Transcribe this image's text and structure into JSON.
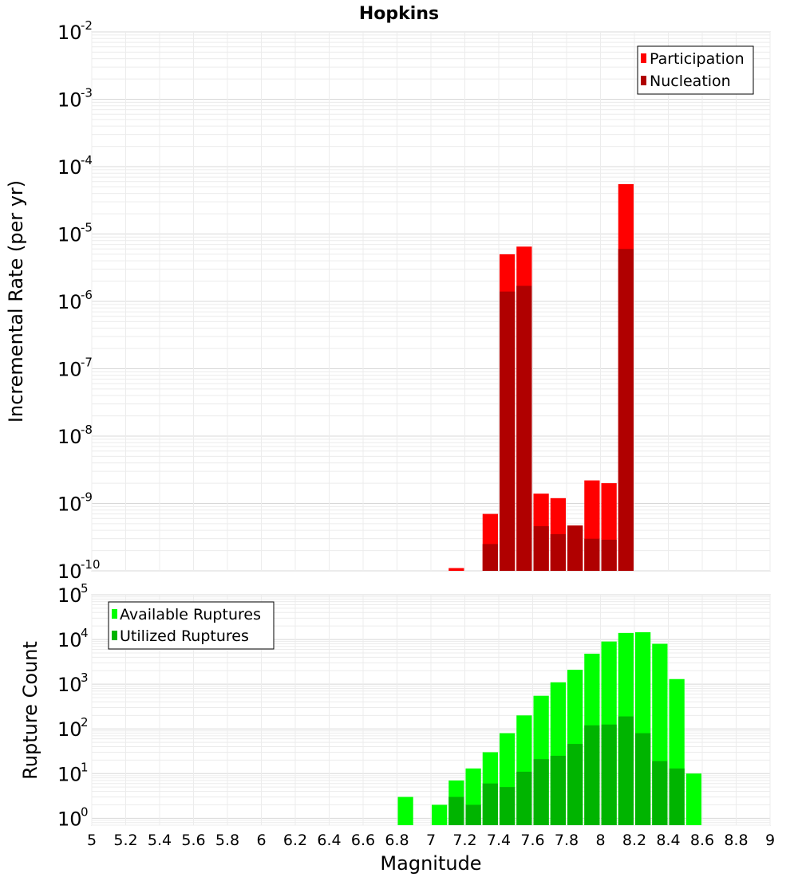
{
  "chart_data": [
    {
      "type": "bar",
      "title": "Hopkins",
      "xlabel": "",
      "ylabel": "Incremental Rate (per yr)",
      "xlim": [
        5,
        9
      ],
      "ylim": [
        1e-10,
        0.01
      ],
      "yscale": "log",
      "grid": true,
      "bin_width": 0.1,
      "legend_position": "top-right",
      "y_ticks": [
        {
          "base": "10",
          "exp": "-10"
        },
        {
          "base": "10",
          "exp": "-9"
        },
        {
          "base": "10",
          "exp": "-8"
        },
        {
          "base": "10",
          "exp": "-7"
        },
        {
          "base": "10",
          "exp": "-6"
        },
        {
          "base": "10",
          "exp": "-5"
        },
        {
          "base": "10",
          "exp": "-4"
        },
        {
          "base": "10",
          "exp": "-3"
        },
        {
          "base": "10",
          "exp": "-2"
        }
      ],
      "series": [
        {
          "name": "Participation",
          "color": "#ff0000",
          "x": [
            7.15,
            7.35,
            7.45,
            7.55,
            7.65,
            7.75,
            7.85,
            7.95,
            8.05,
            8.15
          ],
          "values": [
            1.1e-10,
            7e-10,
            5e-06,
            6.5e-06,
            1.4e-09,
            1.2e-09,
            4.7e-10,
            2.2e-09,
            2e-09,
            5.5e-05
          ]
        },
        {
          "name": "Nucleation",
          "color": "#b00000",
          "x": [
            7.35,
            7.45,
            7.55,
            7.65,
            7.75,
            7.85,
            7.95,
            8.05,
            8.15
          ],
          "values": [
            2.5e-10,
            1.4e-06,
            1.7e-06,
            4.6e-10,
            3.5e-10,
            4.7e-10,
            3e-10,
            2.9e-10,
            6e-06
          ]
        }
      ]
    },
    {
      "type": "bar",
      "title": "",
      "xlabel": "Magnitude",
      "ylabel": "Rupture Count",
      "xlim": [
        5,
        9
      ],
      "ylim": [
        0.7,
        100000.0
      ],
      "yscale": "log",
      "grid": true,
      "bin_width": 0.1,
      "legend_position": "top-left",
      "y_ticks": [
        {
          "base": "10",
          "exp": "0"
        },
        {
          "base": "10",
          "exp": "1"
        },
        {
          "base": "10",
          "exp": "2"
        },
        {
          "base": "10",
          "exp": "3"
        },
        {
          "base": "10",
          "exp": "4"
        },
        {
          "base": "10",
          "exp": "5"
        }
      ],
      "x_ticks": [
        "5",
        "5.2",
        "5.4",
        "5.6",
        "5.8",
        "6",
        "6.2",
        "6.4",
        "6.6",
        "6.8",
        "7",
        "7.2",
        "7.4",
        "7.6",
        "7.8",
        "8",
        "8.2",
        "8.4",
        "8.6",
        "8.8",
        "9"
      ],
      "series": [
        {
          "name": "Available Ruptures",
          "color": "#00ff00",
          "x": [
            6.85,
            7.05,
            7.15,
            7.25,
            7.35,
            7.45,
            7.55,
            7.65,
            7.75,
            7.85,
            7.95,
            8.05,
            8.15,
            8.25,
            8.35,
            8.45,
            8.55
          ],
          "values": [
            3,
            2,
            7,
            13,
            30,
            80,
            200,
            550,
            1100,
            2100,
            4800,
            9000,
            14000,
            14500,
            8000,
            1300,
            10
          ]
        },
        {
          "name": "Utilized Ruptures",
          "color": "#00b400",
          "x": [
            7.15,
            7.25,
            7.35,
            7.45,
            7.55,
            7.65,
            7.75,
            7.85,
            7.95,
            8.05,
            8.15,
            8.25,
            8.35,
            8.45
          ],
          "values": [
            3,
            2,
            6,
            5,
            11,
            21,
            25,
            46,
            120,
            125,
            190,
            80,
            19,
            13
          ]
        }
      ]
    }
  ]
}
